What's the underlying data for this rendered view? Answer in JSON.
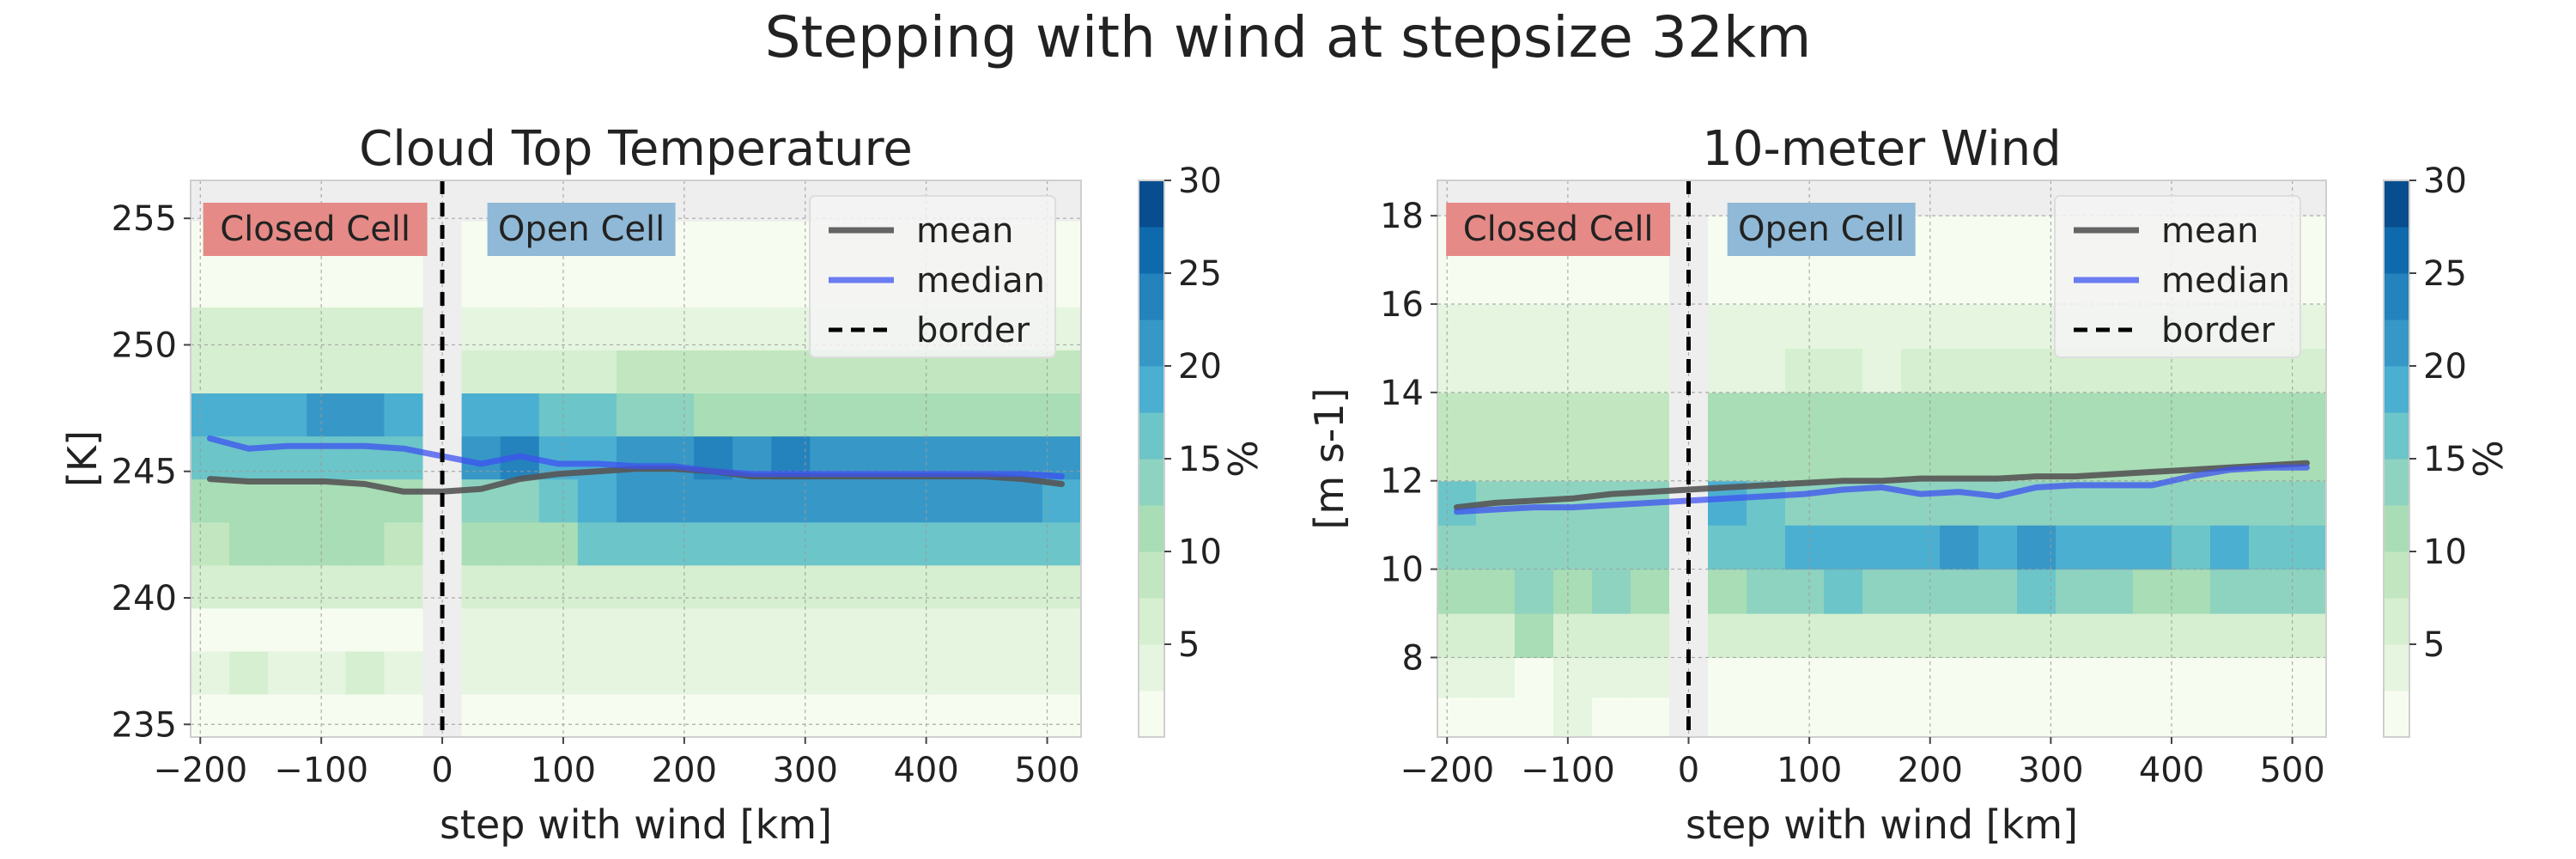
{
  "suptitle": "Stepping with wind at stepsize 32km",
  "colorbar": {
    "label": "%",
    "ticks": [
      "5",
      "10",
      "15",
      "20",
      "25",
      "30"
    ],
    "min": 0,
    "max": 30,
    "levels": [
      0,
      2.5,
      5,
      7.5,
      10,
      12.5,
      15,
      17.5,
      20,
      22.5,
      25,
      27.5,
      30
    ],
    "colors": [
      "#f7fcf0",
      "#e5f5e0",
      "#d6efd0",
      "#c2e7c0",
      "#a8ddb5",
      "#8ed3c0",
      "#6cc5c8",
      "#4bafd1",
      "#3798c7",
      "#2482bd",
      "#0f6aad",
      "#084d8e"
    ]
  },
  "colors": {
    "mean": "#555555",
    "median": "#3e52f0",
    "border": "#000000",
    "closed_cell_box": "#e58a86",
    "open_cell_box": "#8fb9d6",
    "excluded": "#eeeeee"
  },
  "chart_data": [
    {
      "type": "heatmap",
      "title": "Cloud Top Temperature",
      "xlabel": "step with wind [km]",
      "ylabel": "[K]",
      "xlim": [
        -208,
        528
      ],
      "ylim": [
        234.5,
        256.5
      ],
      "xticks": [
        -200,
        -100,
        0,
        100,
        200,
        300,
        400,
        500
      ],
      "xtick_labels": [
        "−200",
        "−100",
        "0",
        "100",
        "200",
        "300",
        "400",
        "500"
      ],
      "yticks": [
        235,
        240,
        245,
        250,
        255
      ],
      "ytick_labels": [
        "235",
        "240",
        "245",
        "250",
        "255"
      ],
      "x_bin_edges": [
        -208,
        -176,
        -144,
        -112,
        -80,
        -48,
        -16,
        16,
        48,
        80,
        112,
        144,
        176,
        208,
        240,
        272,
        304,
        336,
        368,
        400,
        432,
        464,
        496,
        528
      ],
      "y_bin_edges": [
        234.5,
        236.2,
        237.9,
        239.6,
        241.3,
        243.0,
        244.7,
        246.4,
        248.1,
        249.8,
        251.5,
        253.2,
        254.9,
        256.5
      ],
      "heat": [
        [
          2,
          2,
          2,
          2,
          2,
          2,
          null,
          2,
          2,
          2,
          2,
          2,
          2,
          2,
          2,
          2,
          2,
          2,
          2,
          2,
          2,
          2,
          2
        ],
        [
          4,
          6,
          4,
          4,
          6,
          4,
          null,
          3,
          3,
          3,
          3,
          3,
          3,
          3,
          3,
          3,
          3,
          3,
          3,
          3,
          3,
          3,
          3
        ],
        [
          2,
          2,
          2,
          2,
          2,
          2,
          null,
          3,
          3,
          3,
          3,
          3,
          3,
          3,
          3,
          3,
          3,
          3,
          3,
          3,
          3,
          3,
          3
        ],
        [
          6,
          6,
          6,
          6,
          6,
          6,
          null,
          6,
          6,
          6,
          6,
          6,
          6,
          6,
          6,
          6,
          6,
          6,
          6,
          6,
          6,
          6,
          6
        ],
        [
          8,
          10,
          10,
          10,
          10,
          8,
          null,
          10,
          10,
          10,
          16,
          16,
          16,
          16,
          16,
          16,
          16,
          16,
          16,
          16,
          16,
          16,
          16
        ],
        [
          10,
          12,
          12,
          12,
          12,
          10,
          null,
          14,
          14,
          16,
          18,
          20,
          20,
          20,
          22,
          22,
          22,
          22,
          22,
          22,
          22,
          20,
          18
        ],
        [
          16,
          16,
          16,
          16,
          16,
          16,
          null,
          20,
          24,
          18,
          18,
          20,
          22,
          24,
          22,
          24,
          22,
          22,
          20,
          20,
          20,
          20,
          20
        ],
        [
          18,
          18,
          18,
          22,
          22,
          18,
          null,
          18,
          18,
          16,
          16,
          14,
          14,
          12,
          12,
          12,
          12,
          12,
          12,
          12,
          12,
          12,
          12
        ],
        [
          6,
          6,
          6,
          6,
          6,
          6,
          null,
          6,
          6,
          6,
          6,
          8,
          8,
          8,
          8,
          8,
          8,
          8,
          8,
          8,
          8,
          8,
          8
        ],
        [
          6,
          6,
          6,
          6,
          6,
          6,
          null,
          3,
          3,
          3,
          3,
          3,
          3,
          3,
          3,
          3,
          3,
          3,
          3,
          3,
          3,
          3,
          3
        ],
        [
          2,
          2,
          2,
          2,
          2,
          2,
          null,
          2,
          2,
          2,
          2,
          2,
          2,
          2,
          2,
          2,
          2,
          2,
          2,
          2,
          2,
          2,
          2
        ],
        [
          2,
          2,
          2,
          2,
          2,
          2,
          null,
          2,
          2,
          2,
          2,
          2,
          2,
          2,
          2,
          2,
          2,
          2,
          2,
          2,
          2,
          2,
          2
        ],
        [
          null,
          null,
          null,
          null,
          null,
          null,
          null,
          null,
          null,
          null,
          null,
          null,
          null,
          null,
          null,
          null,
          null,
          null,
          null,
          null,
          null,
          null,
          null
        ]
      ],
      "series": [
        {
          "name": "mean",
          "x": [
            -192,
            -160,
            -128,
            -96,
            -64,
            -32,
            0,
            32,
            64,
            96,
            128,
            160,
            192,
            224,
            256,
            288,
            320,
            352,
            384,
            416,
            448,
            480,
            512
          ],
          "y": [
            244.7,
            244.6,
            244.6,
            244.6,
            244.5,
            244.2,
            244.2,
            244.3,
            244.7,
            244.9,
            245.0,
            245.1,
            245.1,
            245.0,
            244.8,
            244.8,
            244.8,
            244.8,
            244.8,
            244.8,
            244.8,
            244.7,
            244.5
          ]
        },
        {
          "name": "median",
          "x": [
            -192,
            -160,
            -128,
            -96,
            -64,
            -32,
            0,
            32,
            64,
            96,
            128,
            160,
            192,
            224,
            256,
            288,
            320,
            352,
            384,
            416,
            448,
            480,
            512
          ],
          "y": [
            246.3,
            245.9,
            246.0,
            246.0,
            246.0,
            245.9,
            245.6,
            245.3,
            245.6,
            245.3,
            245.3,
            245.2,
            245.2,
            245.0,
            244.9,
            244.9,
            244.9,
            244.9,
            244.9,
            244.9,
            244.9,
            244.9,
            244.8
          ]
        }
      ],
      "border_x": 0,
      "exclusion_zone": [
        -16,
        0
      ],
      "legend": {
        "position": "top-right",
        "entries": [
          "mean",
          "median",
          "border"
        ]
      },
      "annotations": {
        "closed": "Closed Cell",
        "open": "Open Cell"
      },
      "closed_at": -105,
      "open_at": 115
    },
    {
      "type": "heatmap",
      "title": "10-meter Wind",
      "xlabel": "step with wind [km]",
      "ylabel": "[m s-1]",
      "xlim": [
        -208,
        528
      ],
      "ylim": [
        6.2,
        18.8
      ],
      "xticks": [
        -200,
        -100,
        0,
        100,
        200,
        300,
        400,
        500
      ],
      "xtick_labels": [
        "−200",
        "−100",
        "0",
        "100",
        "200",
        "300",
        "400",
        "500"
      ],
      "yticks": [
        8,
        10,
        12,
        14,
        16,
        18
      ],
      "ytick_labels": [
        "8",
        "10",
        "12",
        "14",
        "16",
        "18"
      ],
      "x_bin_edges": [
        -208,
        -176,
        -144,
        -112,
        -80,
        -48,
        -16,
        16,
        48,
        80,
        112,
        144,
        176,
        208,
        240,
        272,
        304,
        336,
        368,
        400,
        432,
        464,
        496,
        528
      ],
      "y_bin_edges": [
        6.2,
        7.1,
        8.0,
        9.0,
        10.0,
        11.0,
        12.0,
        13.0,
        14.0,
        15.0,
        16.0,
        17.0,
        18.0,
        18.8
      ],
      "heat": [
        [
          2,
          2,
          2,
          4,
          2,
          2,
          null,
          2,
          2,
          2,
          2,
          2,
          2,
          2,
          2,
          2,
          2,
          2,
          2,
          2,
          2,
          2,
          2
        ],
        [
          4,
          4,
          2,
          4,
          4,
          4,
          null,
          2,
          2,
          2,
          2,
          2,
          2,
          2,
          2,
          2,
          2,
          2,
          2,
          2,
          2,
          2,
          2
        ],
        [
          6,
          6,
          10,
          6,
          6,
          6,
          null,
          6,
          6,
          6,
          6,
          6,
          6,
          6,
          6,
          6,
          6,
          6,
          6,
          6,
          6,
          6,
          6
        ],
        [
          12,
          12,
          14,
          12,
          14,
          12,
          null,
          12,
          14,
          14,
          16,
          14,
          14,
          14,
          14,
          16,
          14,
          14,
          12,
          12,
          14,
          14,
          14
        ],
        [
          14,
          14,
          14,
          14,
          14,
          14,
          null,
          16,
          16,
          18,
          18,
          18,
          18,
          20,
          18,
          20,
          18,
          18,
          18,
          16,
          18,
          16,
          16
        ],
        [
          16,
          14,
          14,
          14,
          14,
          14,
          null,
          18,
          16,
          14,
          14,
          14,
          14,
          14,
          14,
          14,
          14,
          14,
          14,
          14,
          14,
          14,
          14
        ],
        [
          8,
          8,
          8,
          8,
          8,
          8,
          null,
          10,
          10,
          10,
          12,
          12,
          12,
          12,
          12,
          12,
          12,
          12,
          12,
          12,
          12,
          12,
          12
        ],
        [
          8,
          8,
          8,
          8,
          8,
          8,
          null,
          10,
          10,
          10,
          10,
          10,
          10,
          12,
          12,
          12,
          12,
          12,
          12,
          12,
          12,
          12,
          12
        ],
        [
          4,
          4,
          4,
          4,
          4,
          4,
          null,
          4,
          4,
          6,
          6,
          4,
          6,
          6,
          6,
          6,
          6,
          6,
          6,
          6,
          6,
          6,
          6
        ],
        [
          3,
          3,
          3,
          3,
          3,
          3,
          null,
          3,
          3,
          3,
          3,
          3,
          3,
          3,
          3,
          3,
          3,
          3,
          3,
          3,
          3,
          3,
          3
        ],
        [
          2,
          2,
          2,
          2,
          2,
          2,
          null,
          2,
          2,
          2,
          2,
          2,
          2,
          2,
          2,
          2,
          2,
          2,
          2,
          2,
          2,
          2,
          2
        ],
        [
          1,
          1,
          1,
          1,
          1,
          1,
          null,
          1,
          1,
          1,
          1,
          1,
          1,
          1,
          1,
          1,
          1,
          1,
          1,
          1,
          1,
          1,
          1
        ],
        [
          null,
          null,
          null,
          null,
          null,
          null,
          null,
          null,
          null,
          null,
          null,
          null,
          null,
          null,
          null,
          null,
          null,
          null,
          null,
          null,
          null,
          null,
          null
        ]
      ],
      "series": [
        {
          "name": "mean",
          "x": [
            -192,
            -160,
            -128,
            -96,
            -64,
            -32,
            0,
            32,
            64,
            96,
            128,
            160,
            192,
            224,
            256,
            288,
            320,
            352,
            384,
            416,
            448,
            480,
            512
          ],
          "y": [
            11.4,
            11.5,
            11.55,
            11.6,
            11.7,
            11.75,
            11.8,
            11.85,
            11.9,
            11.95,
            12.0,
            12.0,
            12.05,
            12.05,
            12.05,
            12.1,
            12.1,
            12.15,
            12.2,
            12.25,
            12.3,
            12.35,
            12.4
          ]
        },
        {
          "name": "median",
          "x": [
            -192,
            -160,
            -128,
            -96,
            -64,
            -32,
            0,
            32,
            64,
            96,
            128,
            160,
            192,
            224,
            256,
            288,
            320,
            352,
            384,
            416,
            448,
            480,
            512
          ],
          "y": [
            11.3,
            11.35,
            11.4,
            11.4,
            11.45,
            11.5,
            11.55,
            11.6,
            11.65,
            11.7,
            11.8,
            11.85,
            11.7,
            11.75,
            11.65,
            11.85,
            11.9,
            11.9,
            11.9,
            12.1,
            12.25,
            12.3,
            12.3
          ]
        }
      ],
      "border_x": 0,
      "exclusion_zone": [
        -16,
        0
      ],
      "legend": {
        "position": "top-right",
        "entries": [
          "mean",
          "median",
          "border"
        ]
      },
      "annotations": {
        "closed": "Closed Cell",
        "open": "Open Cell"
      },
      "closed_at": -108,
      "open_at": 110
    }
  ]
}
